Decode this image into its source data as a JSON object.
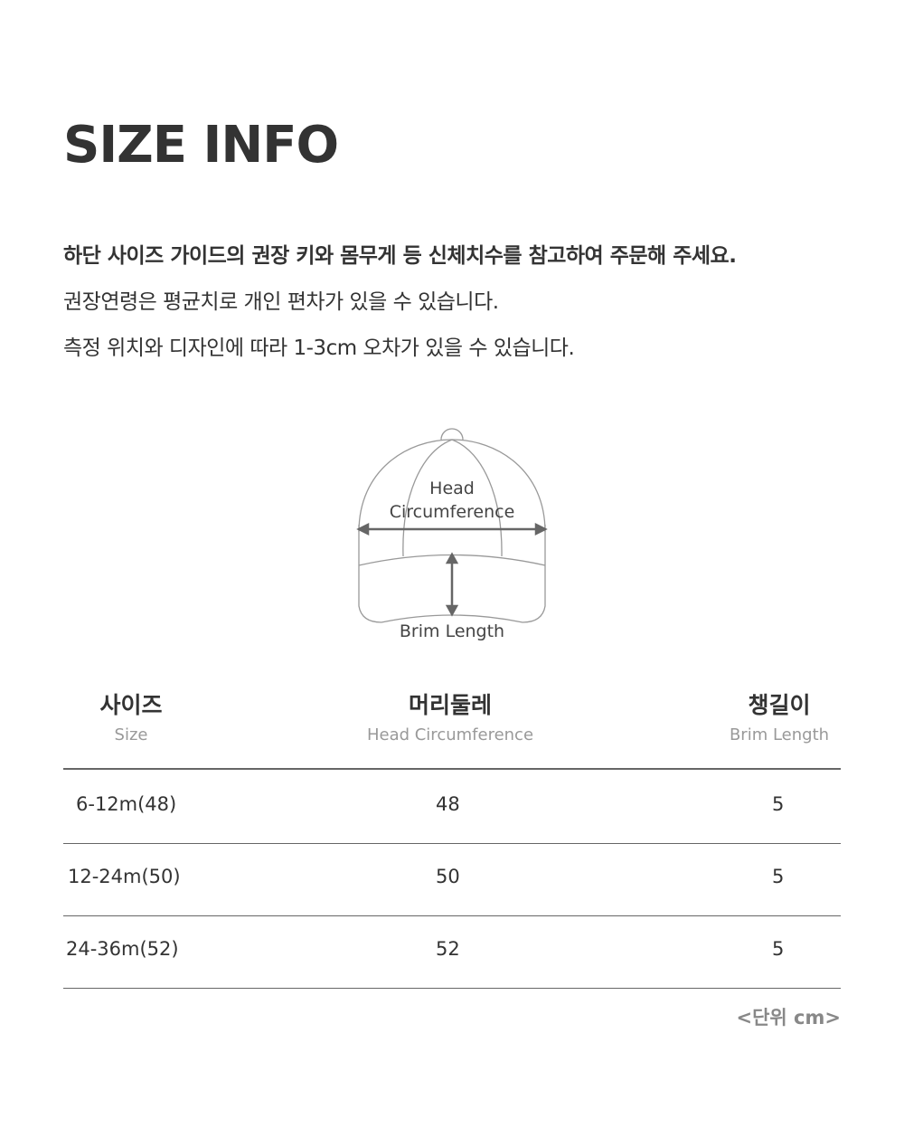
{
  "title": "SIZE INFO",
  "notes": [
    "하단 사이즈 가이드의 권장 키와 몸무게 등 신체치수를 참고하여 주문해 주세요.",
    "권장연령은 평균치로 개인 편차가 있을 수 있습니다.",
    "측정 위치와 디자인에 따라 1-3cm 오차가 있을 수 있습니다."
  ],
  "diagram": {
    "head_line1": "Head",
    "head_line2": "Circumference",
    "brim": "Brim Length"
  },
  "table": {
    "headers": [
      {
        "ko": "사이즈",
        "en": "Size"
      },
      {
        "ko": "머리둘레",
        "en": "Head Circumference"
      },
      {
        "ko": "챙길이",
        "en": "Brim Length"
      }
    ],
    "rows": [
      [
        "6-12m(48)",
        "48",
        "5"
      ],
      [
        "12-24m(50)",
        "50",
        "5"
      ],
      [
        "24-36m(52)",
        "52",
        "5"
      ]
    ]
  },
  "unit": "<단위 cm>"
}
